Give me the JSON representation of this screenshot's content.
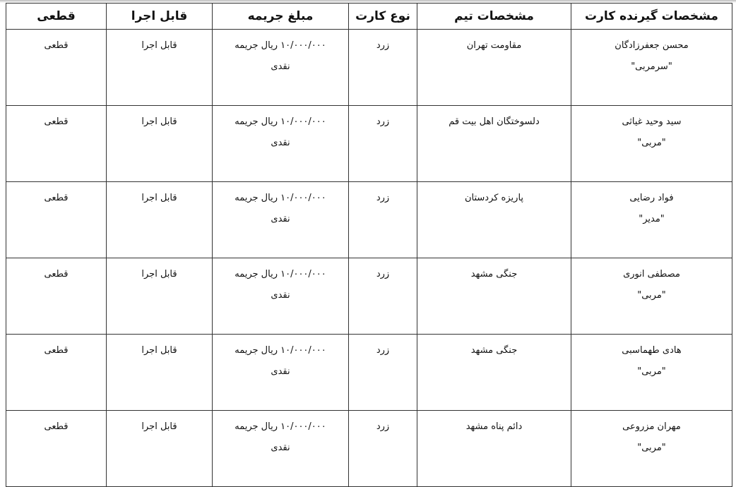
{
  "headers": {
    "recipient": "مشخصات گیرنده کارت",
    "team": "مشخصات تیم",
    "card_type": "نوع کارت",
    "fine": "مبلغ جریمه",
    "executable": "قابل اجرا",
    "final": "قطعی"
  },
  "rows": [
    {
      "name": "محسن جعفرزادگان",
      "role": "\"سرمربی\"",
      "team": "مقاومت تهران",
      "card": "زرد",
      "fine": "۱۰/۰۰۰/۰۰۰ ریال جریمه",
      "fine_type": "نقدی",
      "executable": "قابل اجرا",
      "final": "قطعی"
    },
    {
      "name": "سید وحید غیاثی",
      "role": "\"مربی\"",
      "team": "دلسوختگان اهل بیت قم",
      "card": "زرد",
      "fine": "۱۰/۰۰۰/۰۰۰ ریال جریمه",
      "fine_type": "نقدی",
      "executable": "قابل اجرا",
      "final": "قطعی"
    },
    {
      "name": "فواد رضایی",
      "role": "\"مدیر\"",
      "team": "پاریزه کردستان",
      "card": "زرد",
      "fine": "۱۰/۰۰۰/۰۰۰ ریال جریمه",
      "fine_type": "نقدی",
      "executable": "قابل اجرا",
      "final": "قطعی"
    },
    {
      "name": "مصطفی انوری",
      "role": "\"مربی\"",
      "team": "جنگی مشهد",
      "card": "زرد",
      "fine": "۱۰/۰۰۰/۰۰۰ ریال جریمه",
      "fine_type": "نقدی",
      "executable": "قابل اجرا",
      "final": "قطعی"
    },
    {
      "name": "هادی طهماسبی",
      "role": "\"مربی\"",
      "team": "جنگی مشهد",
      "card": "زرد",
      "fine": "۱۰/۰۰۰/۰۰۰ ریال جریمه",
      "fine_type": "نقدی",
      "executable": "قابل اجرا",
      "final": "قطعی"
    },
    {
      "name": "مهران مزروعی",
      "role": "\"مربی\"",
      "team": "دائم پناه مشهد",
      "card": "زرد",
      "fine": "۱۰/۰۰۰/۰۰۰ ریال جریمه",
      "fine_type": "نقدی",
      "executable": "قابل اجرا",
      "final": "قطعی"
    }
  ]
}
